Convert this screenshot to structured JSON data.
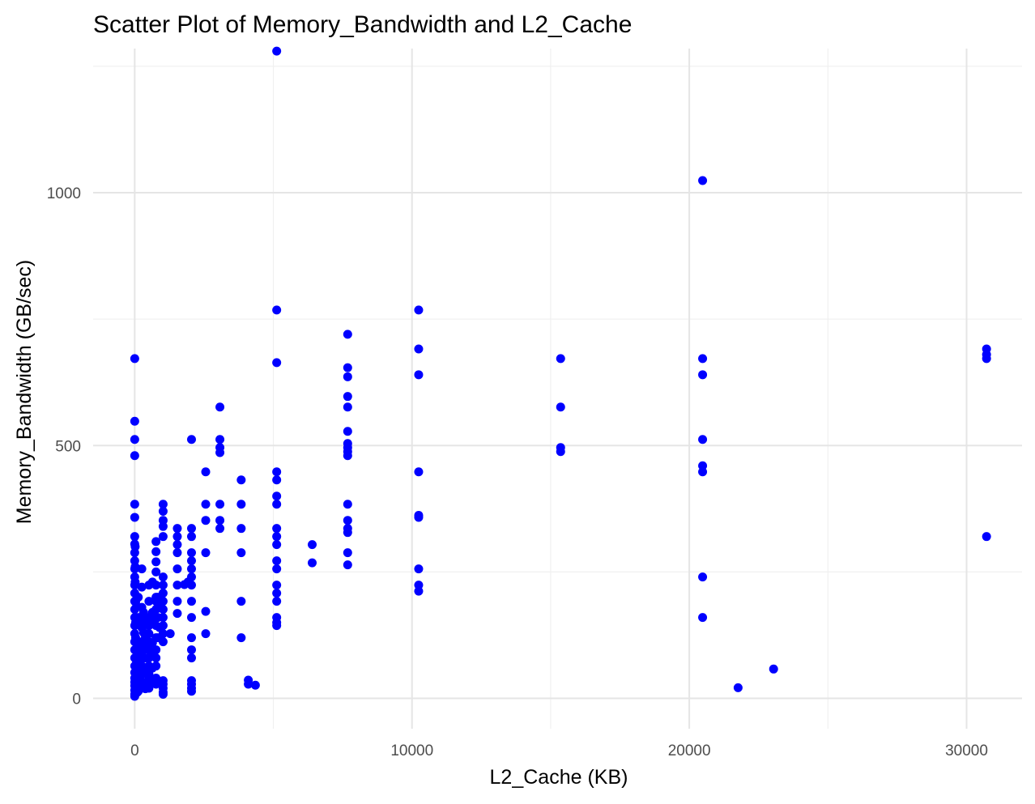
{
  "chart_data": {
    "type": "scatter",
    "title": "Scatter Plot of Memory_Bandwidth and L2_Cache",
    "xlabel": "L2_Cache (KB)",
    "ylabel": "Memory_Bandwidth (GB/sec)",
    "xlim": [
      -1500,
      32000
    ],
    "ylim": [
      -60,
      1285
    ],
    "x_ticks": [
      0,
      10000,
      20000,
      30000
    ],
    "x_tick_labels": [
      "0",
      "10000",
      "20000",
      "30000"
    ],
    "y_ticks": [
      0,
      500,
      1000
    ],
    "y_tick_labels": [
      "0",
      "500",
      "1000"
    ],
    "grid": true,
    "legend": "none",
    "point_color": "#0000ff",
    "points": [
      [
        0,
        672
      ],
      [
        0,
        548
      ],
      [
        0,
        512
      ],
      [
        0,
        480
      ],
      [
        0,
        384
      ],
      [
        0,
        358
      ],
      [
        0,
        320
      ],
      [
        0,
        305
      ],
      [
        0,
        288
      ],
      [
        0,
        272
      ],
      [
        0,
        256
      ],
      [
        0,
        240
      ],
      [
        0,
        224
      ],
      [
        0,
        208
      ],
      [
        0,
        192
      ],
      [
        0,
        176
      ],
      [
        0,
        160
      ],
      [
        0,
        144
      ],
      [
        0,
        128
      ],
      [
        0,
        112
      ],
      [
        0,
        96
      ],
      [
        0,
        80
      ],
      [
        0,
        64
      ],
      [
        0,
        51
      ],
      [
        0,
        40
      ],
      [
        0,
        32
      ],
      [
        0,
        25
      ],
      [
        0,
        16
      ],
      [
        0,
        8
      ],
      [
        0,
        4
      ],
      [
        16,
        300
      ],
      [
        16,
        260
      ],
      [
        16,
        230
      ],
      [
        32,
        190
      ],
      [
        32,
        150
      ],
      [
        32,
        120
      ],
      [
        64,
        95
      ],
      [
        64,
        70
      ],
      [
        64,
        50
      ],
      [
        64,
        30
      ],
      [
        96,
        20
      ],
      [
        96,
        12
      ],
      [
        128,
        200
      ],
      [
        128,
        160
      ],
      [
        128,
        110
      ],
      [
        128,
        80
      ],
      [
        128,
        60
      ],
      [
        128,
        40
      ],
      [
        128,
        25
      ],
      [
        128,
        14
      ],
      [
        192,
        150
      ],
      [
        192,
        100
      ],
      [
        192,
        70
      ],
      [
        256,
        256
      ],
      [
        256,
        220
      ],
      [
        256,
        180
      ],
      [
        256,
        140
      ],
      [
        256,
        112
      ],
      [
        256,
        90
      ],
      [
        256,
        64
      ],
      [
        256,
        48
      ],
      [
        256,
        33
      ],
      [
        256,
        25
      ],
      [
        320,
        170
      ],
      [
        320,
        130
      ],
      [
        320,
        96
      ],
      [
        384,
        160
      ],
      [
        384,
        120
      ],
      [
        384,
        80
      ],
      [
        384,
        50
      ],
      [
        384,
        28
      ],
      [
        384,
        19
      ],
      [
        448,
        150
      ],
      [
        448,
        100
      ],
      [
        448,
        60
      ],
      [
        512,
        224
      ],
      [
        512,
        192
      ],
      [
        512,
        160
      ],
      [
        512,
        144
      ],
      [
        512,
        128
      ],
      [
        512,
        112
      ],
      [
        512,
        96
      ],
      [
        512,
        80
      ],
      [
        512,
        64
      ],
      [
        512,
        48
      ],
      [
        512,
        40
      ],
      [
        512,
        28
      ],
      [
        512,
        20
      ],
      [
        640,
        230
      ],
      [
        640,
        170
      ],
      [
        640,
        150
      ],
      [
        640,
        110
      ],
      [
        640,
        90
      ],
      [
        640,
        60
      ],
      [
        640,
        30
      ],
      [
        768,
        310
      ],
      [
        768,
        290
      ],
      [
        768,
        270
      ],
      [
        768,
        250
      ],
      [
        768,
        224
      ],
      [
        768,
        200
      ],
      [
        768,
        192
      ],
      [
        768,
        176
      ],
      [
        768,
        160
      ],
      [
        768,
        144
      ],
      [
        768,
        120
      ],
      [
        768,
        96
      ],
      [
        768,
        80
      ],
      [
        768,
        64
      ],
      [
        768,
        40
      ],
      [
        768,
        28
      ],
      [
        832,
        200
      ],
      [
        832,
        160
      ],
      [
        832,
        120
      ],
      [
        896,
        180
      ],
      [
        896,
        140
      ],
      [
        1024,
        384
      ],
      [
        1024,
        370
      ],
      [
        1024,
        352
      ],
      [
        1024,
        340
      ],
      [
        1024,
        320
      ],
      [
        1024,
        240
      ],
      [
        1024,
        224
      ],
      [
        1024,
        208
      ],
      [
        1024,
        192
      ],
      [
        1024,
        176
      ],
      [
        1024,
        160
      ],
      [
        1024,
        144
      ],
      [
        1024,
        128
      ],
      [
        1024,
        112
      ],
      [
        1024,
        35
      ],
      [
        1024,
        28
      ],
      [
        1024,
        20
      ],
      [
        1024,
        12
      ],
      [
        1024,
        8
      ],
      [
        1280,
        128
      ],
      [
        1536,
        336
      ],
      [
        1536,
        320
      ],
      [
        1536,
        304
      ],
      [
        1536,
        288
      ],
      [
        1536,
        256
      ],
      [
        1536,
        224
      ],
      [
        1536,
        192
      ],
      [
        1536,
        168
      ],
      [
        2048,
        512
      ],
      [
        2048,
        336
      ],
      [
        2048,
        320
      ],
      [
        2048,
        288
      ],
      [
        2048,
        272
      ],
      [
        2048,
        256
      ],
      [
        2048,
        240
      ],
      [
        2048,
        224
      ],
      [
        2048,
        192
      ],
      [
        2048,
        160
      ],
      [
        2048,
        120
      ],
      [
        2048,
        96
      ],
      [
        2048,
        80
      ],
      [
        2048,
        35
      ],
      [
        2048,
        28
      ],
      [
        2048,
        20
      ],
      [
        2048,
        14
      ],
      [
        1920,
        230
      ],
      [
        1792,
        225
      ],
      [
        2560,
        448
      ],
      [
        2560,
        384
      ],
      [
        2560,
        352
      ],
      [
        2560,
        288
      ],
      [
        2560,
        172
      ],
      [
        2560,
        128
      ],
      [
        3072,
        576
      ],
      [
        3072,
        512
      ],
      [
        3072,
        496
      ],
      [
        3072,
        486
      ],
      [
        3072,
        384
      ],
      [
        3072,
        352
      ],
      [
        3072,
        336
      ],
      [
        3840,
        432
      ],
      [
        3840,
        384
      ],
      [
        3840,
        336
      ],
      [
        3840,
        288
      ],
      [
        3840,
        192
      ],
      [
        3840,
        120
      ],
      [
        4096,
        36
      ],
      [
        4096,
        28
      ],
      [
        4352,
        26
      ],
      [
        5120,
        1280
      ],
      [
        5120,
        768
      ],
      [
        5120,
        664
      ],
      [
        5120,
        448
      ],
      [
        5120,
        432
      ],
      [
        5120,
        400
      ],
      [
        5120,
        384
      ],
      [
        5120,
        336
      ],
      [
        5120,
        320
      ],
      [
        5120,
        304
      ],
      [
        5120,
        272
      ],
      [
        5120,
        256
      ],
      [
        5120,
        224
      ],
      [
        5120,
        208
      ],
      [
        5120,
        192
      ],
      [
        5120,
        160
      ],
      [
        5120,
        150
      ],
      [
        5120,
        144
      ],
      [
        6400,
        304
      ],
      [
        6400,
        268
      ],
      [
        7680,
        720
      ],
      [
        7680,
        654
      ],
      [
        7680,
        636
      ],
      [
        7680,
        597
      ],
      [
        7680,
        576
      ],
      [
        7680,
        528
      ],
      [
        7680,
        504
      ],
      [
        7680,
        496
      ],
      [
        7680,
        488
      ],
      [
        7680,
        480
      ],
      [
        7680,
        384
      ],
      [
        7680,
        352
      ],
      [
        7680,
        336
      ],
      [
        7680,
        328
      ],
      [
        7680,
        288
      ],
      [
        7680,
        264
      ],
      [
        10240,
        768
      ],
      [
        10240,
        691
      ],
      [
        10240,
        640
      ],
      [
        10240,
        448
      ],
      [
        10240,
        362
      ],
      [
        10240,
        358
      ],
      [
        10240,
        256
      ],
      [
        10240,
        224
      ],
      [
        10240,
        212
      ],
      [
        15360,
        672
      ],
      [
        15360,
        576
      ],
      [
        15360,
        496
      ],
      [
        15360,
        488
      ],
      [
        20480,
        1024
      ],
      [
        20480,
        672
      ],
      [
        20480,
        640
      ],
      [
        20480,
        512
      ],
      [
        20480,
        460
      ],
      [
        20480,
        448
      ],
      [
        20480,
        240
      ],
      [
        20480,
        160
      ],
      [
        21760,
        21
      ],
      [
        23040,
        58
      ],
      [
        30720,
        691
      ],
      [
        30720,
        680
      ],
      [
        30720,
        672
      ],
      [
        30720,
        320
      ]
    ]
  }
}
